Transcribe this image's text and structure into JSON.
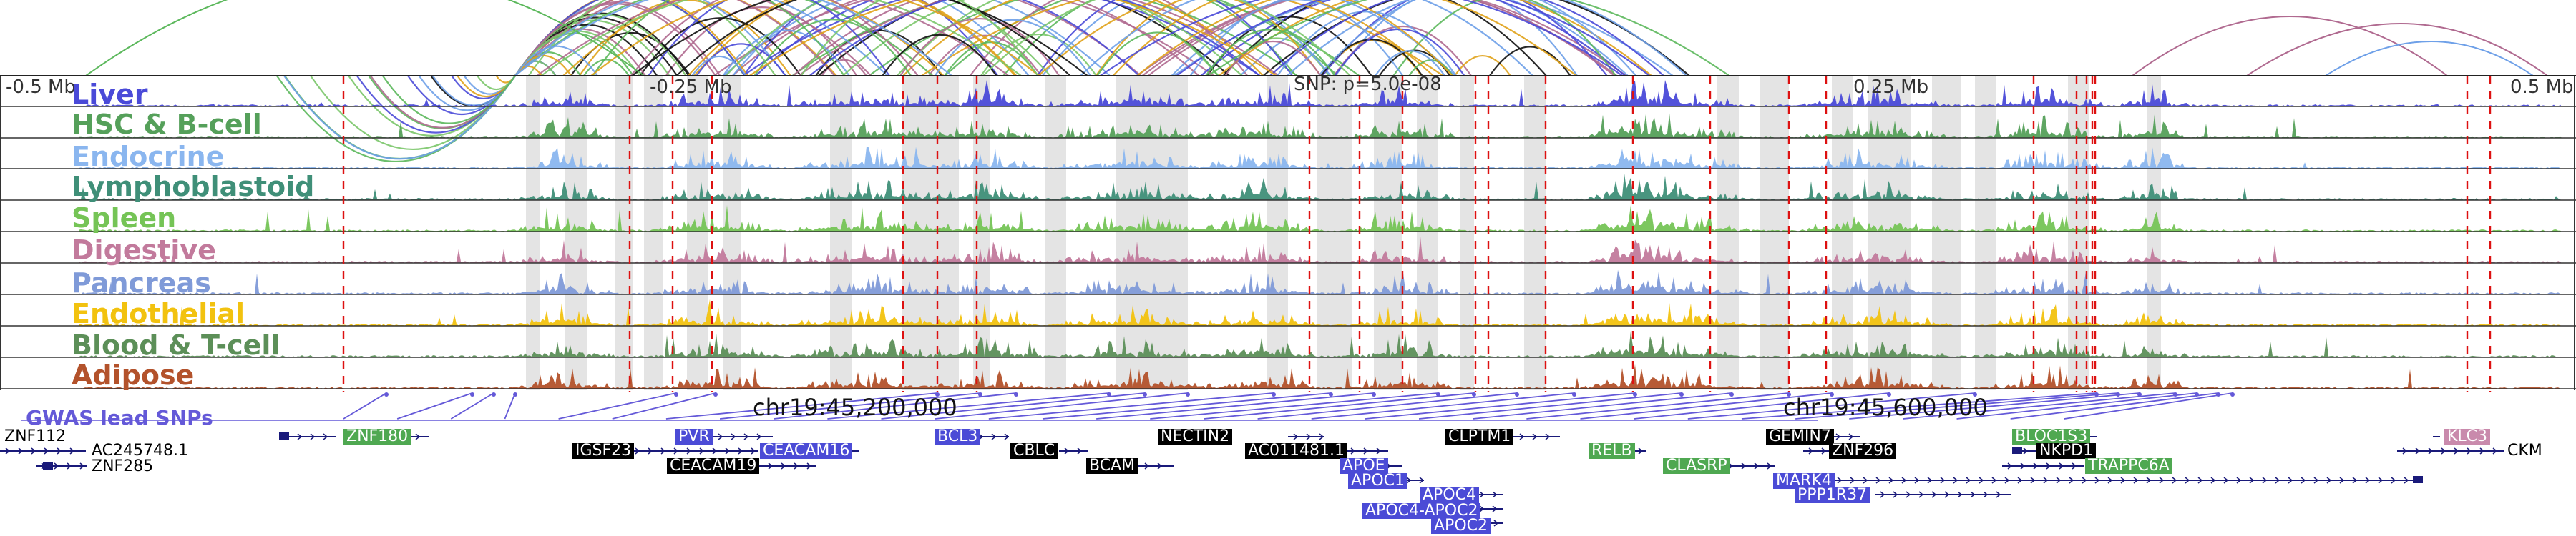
{
  "coords": {
    "left": "-0.5 Mb",
    "minus_025": "-0.25 Mb",
    "snp": "SNP: p=5.0e-08",
    "plus_025": "0.25 Mb",
    "right": "0.5 Mb",
    "chr_a": "chr19:45,200,000",
    "chr_b": "chr19:45,600,000"
  },
  "tracks": [
    {
      "name": "Liver",
      "color": "#4a4ad8"
    },
    {
      "name": "HSC & B-cell",
      "color": "#55a05a"
    },
    {
      "name": "Endocrine",
      "color": "#8ab6ef"
    },
    {
      "name": "Lymphoblastoid",
      "color": "#3f8f78"
    },
    {
      "name": "Spleen",
      "color": "#75c456"
    },
    {
      "name": "Digestive",
      "color": "#c27a9c"
    },
    {
      "name": "Pancreas",
      "color": "#7f9ad8"
    },
    {
      "name": "Endothelial",
      "color": "#f2c20f"
    },
    {
      "name": "Blood & T-cell",
      "color": "#5c8f58"
    },
    {
      "name": "Adipose",
      "color": "#b3522b"
    }
  ],
  "gwas": {
    "label": "GWAS lead SNPs",
    "color": "#6459d8"
  },
  "genes": [
    {
      "name": "ZNF112",
      "style": "plain"
    },
    {
      "name": "AC245748.1",
      "style": "plain"
    },
    {
      "name": "ZNF285",
      "style": "plain"
    },
    {
      "name": "ZNF180",
      "style": "green"
    },
    {
      "name": "PVR",
      "style": "blue"
    },
    {
      "name": "IGSF23",
      "style": "black"
    },
    {
      "name": "CEACAM16",
      "style": "blue"
    },
    {
      "name": "CEACAM19",
      "style": "black"
    },
    {
      "name": "BCL3",
      "style": "blue"
    },
    {
      "name": "CBLC",
      "style": "black"
    },
    {
      "name": "BCAM",
      "style": "black"
    },
    {
      "name": "NECTIN2",
      "style": "black"
    },
    {
      "name": "AC011481.1",
      "style": "black"
    },
    {
      "name": "APOE",
      "style": "blue"
    },
    {
      "name": "APOC1",
      "style": "blue"
    },
    {
      "name": "APOC4",
      "style": "blue"
    },
    {
      "name": "APOC4-APOC2",
      "style": "blue"
    },
    {
      "name": "APOC2",
      "style": "blue"
    },
    {
      "name": "CLPTM1",
      "style": "black"
    },
    {
      "name": "RELB",
      "style": "green"
    },
    {
      "name": "CLASRP",
      "style": "green"
    },
    {
      "name": "GEMIN7",
      "style": "black"
    },
    {
      "name": "ZNF296",
      "style": "black"
    },
    {
      "name": "MARK4",
      "style": "blue"
    },
    {
      "name": "PPP1R37",
      "style": "blue"
    },
    {
      "name": "BLOC1S3",
      "style": "green"
    },
    {
      "name": "NKPD1",
      "style": "black"
    },
    {
      "name": "TRAPPC6A",
      "style": "green"
    },
    {
      "name": "KLC3",
      "style": "pink"
    },
    {
      "name": "CKM",
      "style": "plain"
    }
  ]
}
